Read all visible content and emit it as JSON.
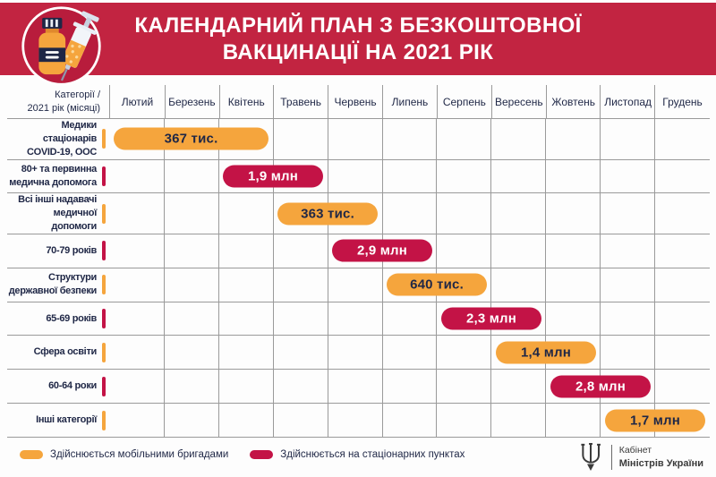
{
  "colors": {
    "banner": "#c22441",
    "crimson": "#c31346",
    "orange": "#f5a53d",
    "navy": "#1f2746",
    "grid": "#9a9a9a",
    "circle": "#b81c3c"
  },
  "header": {
    "title": "КАЛЕНДАРНИЙ ПЛАН З БЕЗКОШТОВНОЇ\nВАКЦИНАЦІЇ НА 2021 РІК",
    "icon": "vaccine-vial-syringe-icon"
  },
  "table": {
    "corner_header": "Категорії /\n2021 рік (місяці)"
  },
  "chart_data": {
    "type": "gantt-bar",
    "title": "Календарний план з безкоштовної вакцинації на 2021 рік",
    "x_axis_label": "2021 рік (місяці)",
    "months": [
      "Лютий",
      "Березень",
      "Квітень",
      "Травень",
      "Червень",
      "Липень",
      "Серпень",
      "Вересень",
      "Жовтень",
      "Листопад",
      "Грудень"
    ],
    "grid": true,
    "rows": [
      {
        "category": "Медики стаціонарів\nCOVID-19, ООС",
        "value": "367 тис.",
        "start": 0,
        "span": 3,
        "start_month": "Лютий",
        "end_month": "Квітень",
        "type": "mobile"
      },
      {
        "category": "80+ та первинна\nмедична допомога",
        "value": "1,9 млн",
        "start": 2,
        "span": 2,
        "start_month": "Квітень",
        "end_month": "Травень",
        "type": "stationary"
      },
      {
        "category": "Всі інші надавачі\nмедичної допомоги",
        "value": "363 тис.",
        "start": 3,
        "span": 2,
        "start_month": "Травень",
        "end_month": "Червень",
        "type": "mobile"
      },
      {
        "category": "70-79 років",
        "value": "2,9 млн",
        "start": 4,
        "span": 2,
        "start_month": "Червень",
        "end_month": "Липень",
        "type": "stationary"
      },
      {
        "category": "Структури\nдержавної безпеки",
        "value": "640 тис.",
        "start": 5,
        "span": 2,
        "start_month": "Липень",
        "end_month": "Серпень",
        "type": "mobile"
      },
      {
        "category": "65-69 років",
        "value": "2,3 млн",
        "start": 6,
        "span": 2,
        "start_month": "Серпень",
        "end_month": "Вересень",
        "type": "stationary"
      },
      {
        "category": "Сфера освіти",
        "value": "1,4 млн",
        "start": 7,
        "span": 2,
        "start_month": "Вересень",
        "end_month": "Жовтень",
        "type": "mobile"
      },
      {
        "category": "60-64 роки",
        "value": "2,8 млн",
        "start": 8,
        "span": 2,
        "start_month": "Жовтень",
        "end_month": "Листопад",
        "type": "stationary"
      },
      {
        "category": "Інші категорії",
        "value": "1,7 млн",
        "start": 9,
        "span": 2,
        "start_month": "Листопад",
        "end_month": "Грудень",
        "type": "mobile"
      }
    ]
  },
  "legend": {
    "items": [
      {
        "label": "Здійснюється мобільними бригадами",
        "type": "mobile",
        "color": "#f5a53d"
      },
      {
        "label": "Здійснюється на стаціонарних пунктах",
        "type": "stationary",
        "color": "#c31346"
      }
    ]
  },
  "footer_logo": {
    "icon": "tryzub-trident-icon",
    "line1": "Кабінет",
    "line2": "Міністрів України"
  }
}
